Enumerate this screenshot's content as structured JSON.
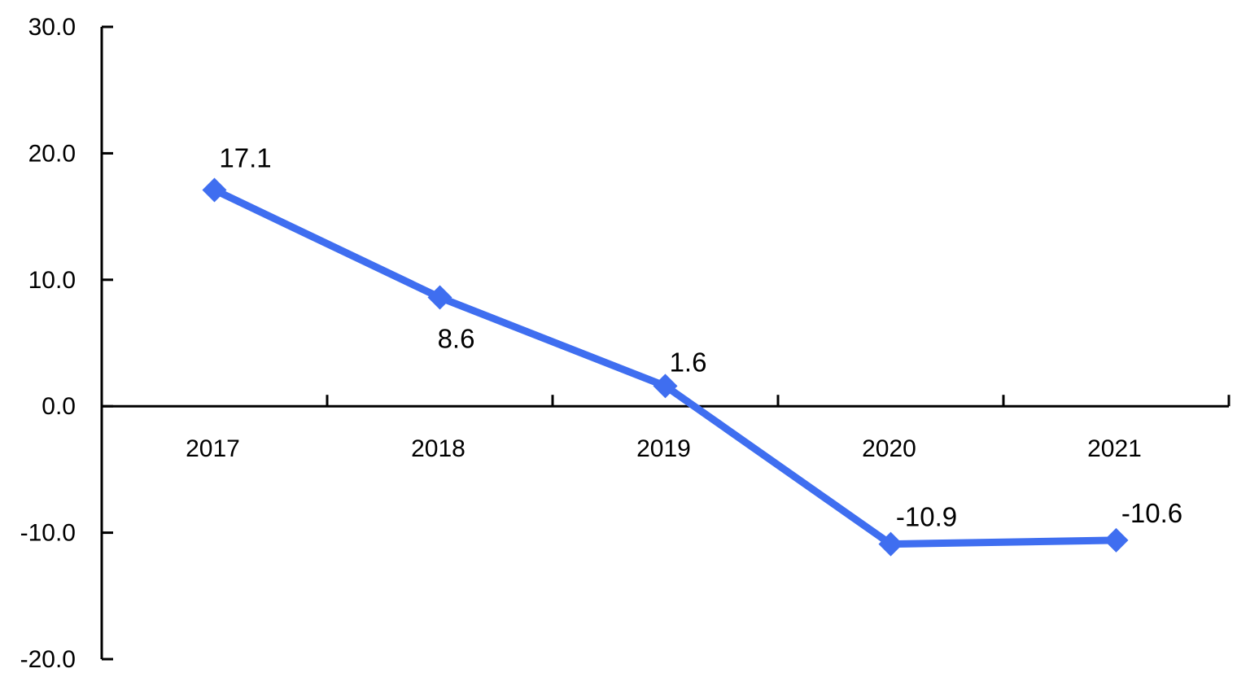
{
  "chart_data": {
    "type": "line",
    "categories": [
      "2017",
      "2018",
      "2019",
      "2020",
      "2021"
    ],
    "series": [
      {
        "values": [
          17.1,
          8.6,
          1.6,
          -10.9,
          -10.6
        ]
      }
    ],
    "data_labels": [
      "17.1",
      "8.6",
      "1.6",
      "-10.9",
      "-10.6"
    ],
    "ylim": [
      -20,
      30
    ],
    "y_ticks": [
      30,
      20,
      10,
      0,
      -10,
      -20
    ],
    "y_tick_labels": [
      "30.0",
      "20.0",
      "10.0",
      "0.0",
      "-10.0",
      "-20.0"
    ],
    "grid": false,
    "legend": "none",
    "marker": "diamond",
    "line_color": "#3f6ef0"
  }
}
